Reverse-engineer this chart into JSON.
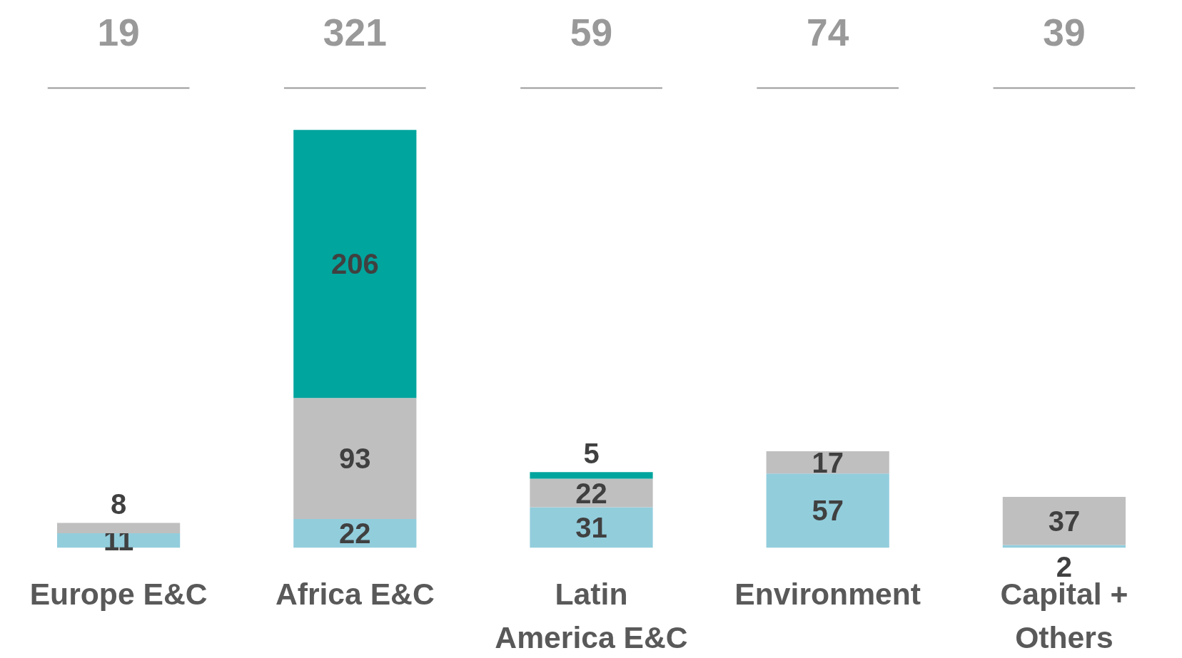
{
  "chart_data": {
    "type": "bar",
    "stacked": true,
    "categories": [
      "Europe E&C",
      "Africa E&C",
      "Latin America E&C",
      "Environment",
      "Capital + Others"
    ],
    "series": [
      {
        "color": "#92cddc",
        "values": [
          11,
          22,
          31,
          57,
          2
        ]
      },
      {
        "color": "#bfbfbf",
        "values": [
          8,
          93,
          22,
          17,
          37
        ]
      },
      {
        "color": "#00a59e",
        "values": [
          null,
          206,
          5,
          null,
          null
        ]
      }
    ],
    "data_labels": true,
    "annotations": [
      "19",
      "321",
      "59",
      "74",
      "39"
    ]
  }
}
